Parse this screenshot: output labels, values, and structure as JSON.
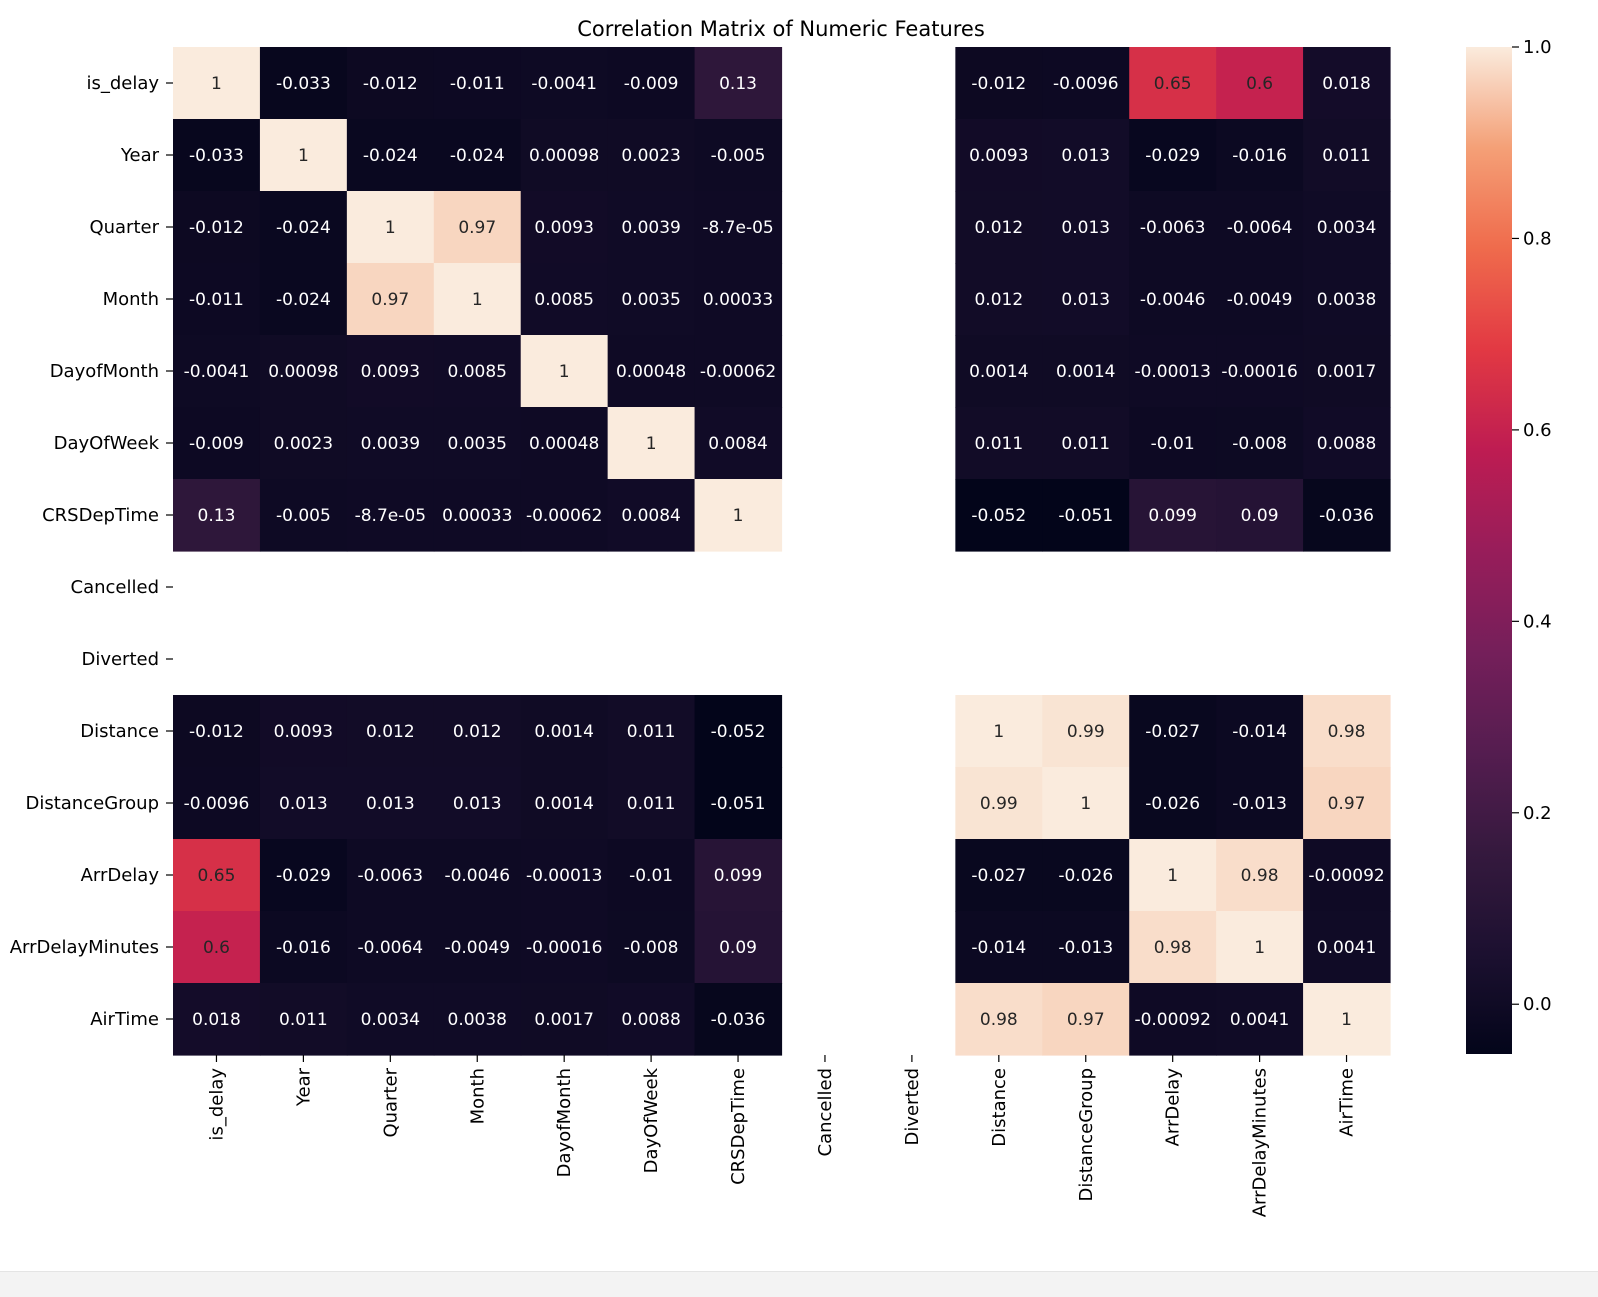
{
  "chart_data": {
    "type": "heatmap",
    "title": "Correlation Matrix of Numeric Features",
    "xlabel": "",
    "ylabel": "",
    "labels": [
      "is_delay",
      "Year",
      "Quarter",
      "Month",
      "DayofMonth",
      "DayOfWeek",
      "CRSDepTime",
      "Cancelled",
      "Diverted",
      "Distance",
      "DistanceGroup",
      "ArrDelay",
      "ArrDelayMinutes",
      "AirTime"
    ],
    "matrix": [
      [
        1,
        -0.033,
        -0.012,
        -0.011,
        -0.0041,
        -0.009,
        0.13,
        null,
        null,
        -0.012,
        -0.0096,
        0.65,
        0.6,
        0.018
      ],
      [
        -0.033,
        1,
        -0.024,
        -0.024,
        0.00098,
        0.0023,
        -0.005,
        null,
        null,
        0.0093,
        0.013,
        -0.029,
        -0.016,
        0.011
      ],
      [
        -0.012,
        -0.024,
        1,
        0.97,
        0.0093,
        0.0039,
        -8.7e-05,
        null,
        null,
        0.012,
        0.013,
        -0.0063,
        -0.0064,
        0.0034
      ],
      [
        -0.011,
        -0.024,
        0.97,
        1,
        0.0085,
        0.0035,
        0.00033,
        null,
        null,
        0.012,
        0.013,
        -0.0046,
        -0.0049,
        0.0038
      ],
      [
        -0.0041,
        0.00098,
        0.0093,
        0.0085,
        1,
        0.00048,
        -0.00062,
        null,
        null,
        0.0014,
        0.0014,
        -0.00013,
        -0.00016,
        0.0017
      ],
      [
        -0.009,
        0.0023,
        0.0039,
        0.0035,
        0.00048,
        1,
        0.0084,
        null,
        null,
        0.011,
        0.011,
        -0.01,
        -0.008,
        0.0088
      ],
      [
        0.13,
        -0.005,
        -8.7e-05,
        0.00033,
        -0.00062,
        0.0084,
        1,
        null,
        null,
        -0.052,
        -0.051,
        0.099,
        0.09,
        -0.036
      ],
      [
        null,
        null,
        null,
        null,
        null,
        null,
        null,
        null,
        null,
        null,
        null,
        null,
        null,
        null
      ],
      [
        null,
        null,
        null,
        null,
        null,
        null,
        null,
        null,
        null,
        null,
        null,
        null,
        null,
        null
      ],
      [
        -0.012,
        0.0093,
        0.012,
        0.012,
        0.0014,
        0.011,
        -0.052,
        null,
        null,
        1,
        0.99,
        -0.027,
        -0.014,
        0.98
      ],
      [
        -0.0096,
        0.013,
        0.013,
        0.013,
        0.0014,
        0.011,
        -0.051,
        null,
        null,
        0.99,
        1,
        -0.026,
        -0.013,
        0.97
      ],
      [
        0.65,
        -0.029,
        -0.0063,
        -0.0046,
        -0.00013,
        -0.01,
        0.099,
        null,
        null,
        -0.027,
        -0.026,
        1,
        0.98,
        -0.00092
      ],
      [
        0.6,
        -0.016,
        -0.0064,
        -0.0049,
        -0.00016,
        -0.008,
        0.09,
        null,
        null,
        -0.014,
        -0.013,
        0.98,
        1,
        0.0041
      ],
      [
        0.018,
        0.011,
        0.0034,
        0.0038,
        0.0017,
        0.0088,
        -0.036,
        null,
        null,
        0.98,
        0.97,
        -0.00092,
        0.0041,
        1
      ]
    ],
    "annotations": [
      [
        "1",
        "-0.033",
        "-0.012",
        "-0.011",
        "-0.0041",
        "-0.009",
        "0.13",
        "",
        "",
        "-0.012",
        "-0.0096",
        "0.65",
        "0.6",
        "0.018"
      ],
      [
        "-0.033",
        "1",
        "-0.024",
        "-0.024",
        "0.00098",
        "0.0023",
        "-0.005",
        "",
        "",
        "0.0093",
        "0.013",
        "-0.029",
        "-0.016",
        "0.011"
      ],
      [
        "-0.012",
        "-0.024",
        "1",
        "0.97",
        "0.0093",
        "0.0039",
        "-8.7e-05",
        "",
        "",
        "0.012",
        "0.013",
        "-0.0063",
        "-0.0064",
        "0.0034"
      ],
      [
        "-0.011",
        "-0.024",
        "0.97",
        "1",
        "0.0085",
        "0.0035",
        "0.00033",
        "",
        "",
        "0.012",
        "0.013",
        "-0.0046",
        "-0.0049",
        "0.0038"
      ],
      [
        "-0.0041",
        "0.00098",
        "0.0093",
        "0.0085",
        "1",
        "0.00048",
        "-0.00062",
        "",
        "",
        "0.0014",
        "0.0014",
        "-0.00013",
        "-0.00016",
        "0.0017"
      ],
      [
        "-0.009",
        "0.0023",
        "0.0039",
        "0.0035",
        "0.00048",
        "1",
        "0.0084",
        "",
        "",
        "0.011",
        "0.011",
        "-0.01",
        "-0.008",
        "0.0088"
      ],
      [
        "0.13",
        "-0.005",
        "-8.7e-05",
        "0.00033",
        "-0.00062",
        "0.0084",
        "1",
        "",
        "",
        "-0.052",
        "-0.051",
        "0.099",
        "0.09",
        "-0.036"
      ],
      [
        "",
        "",
        "",
        "",
        "",
        "",
        "",
        "",
        "",
        "",
        "",
        "",
        "",
        ""
      ],
      [
        "",
        "",
        "",
        "",
        "",
        "",
        "",
        "",
        "",
        "",
        "",
        "",
        "",
        ""
      ],
      [
        "-0.012",
        "0.0093",
        "0.012",
        "0.012",
        "0.0014",
        "0.011",
        "-0.052",
        "",
        "",
        "1",
        "0.99",
        "-0.027",
        "-0.014",
        "0.98"
      ],
      [
        "-0.0096",
        "0.013",
        "0.013",
        "0.013",
        "0.0014",
        "0.011",
        "-0.051",
        "",
        "",
        "0.99",
        "1",
        "-0.026",
        "-0.013",
        "0.97"
      ],
      [
        "0.65",
        "-0.029",
        "-0.0063",
        "-0.0046",
        "-0.00013",
        "-0.01",
        "0.099",
        "",
        "",
        "-0.027",
        "-0.026",
        "1",
        "0.98",
        "-0.00092"
      ],
      [
        "0.6",
        "-0.016",
        "-0.0064",
        "-0.0049",
        "-0.00016",
        "-0.008",
        "0.09",
        "",
        "",
        "-0.014",
        "-0.013",
        "0.98",
        "1",
        "0.0041"
      ],
      [
        "0.018",
        "0.011",
        "0.0034",
        "0.0038",
        "0.0017",
        "0.0088",
        "-0.036",
        "",
        "",
        "0.98",
        "0.97",
        "-0.00092",
        "0.0041",
        "1"
      ]
    ],
    "colorbar": {
      "range": [
        -0.052,
        1
      ],
      "ticks": [
        0.0,
        0.2,
        0.4,
        0.6,
        0.8,
        1.0
      ],
      "tick_labels": [
        "0.0",
        "0.2",
        "0.4",
        "0.6",
        "0.8",
        "1.0"
      ],
      "colormap": "rocket"
    },
    "grid": false,
    "legend": "colorbar-right"
  }
}
